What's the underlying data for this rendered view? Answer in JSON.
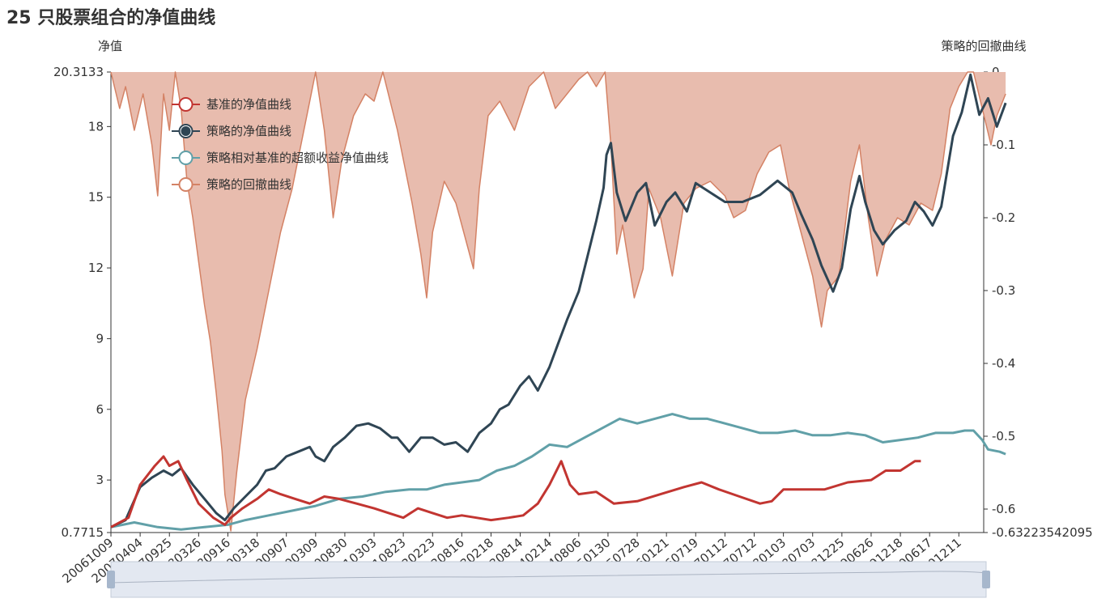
{
  "chart_data": {
    "type": "line",
    "title": "25 只股票组合的净值曲线",
    "ylabel_left": "净值",
    "ylabel_right": "策略的回撤曲线",
    "left_axis": {
      "min": 0.7715,
      "max": 20.3133,
      "ticks": [
        3,
        6,
        9,
        12,
        15,
        18
      ],
      "min_label": "0.7715",
      "max_label": "20.3133"
    },
    "right_axis": {
      "min": -0.632235420955,
      "max": 0,
      "ticks": [
        0,
        -0.1,
        -0.2,
        -0.3,
        -0.4,
        -0.5,
        -0.6
      ],
      "tick_labels": [
        "0",
        "-0.1",
        "-0.2",
        "-0.3",
        "-0.4",
        "-0.5",
        "-0.6"
      ],
      "min_label": "-0.632235420955"
    },
    "x_ticks": [
      "20061009",
      "20070404",
      "20070925",
      "20080326",
      "20080916",
      "20090318",
      "20090907",
      "20100309",
      "20100830",
      "20110303",
      "20110823",
      "20120223",
      "20120816",
      "20130218",
      "20130814",
      "20140214",
      "20140806",
      "20150130",
      "20150728",
      "20160121",
      "20160719",
      "20170112",
      "20170712",
      "20180103",
      "20180703",
      "20181225",
      "20190626",
      "20191218",
      "20200617",
      "20201211"
    ],
    "series": [
      {
        "name": "基准的净值曲线",
        "color": "#c23531",
        "axis": "left",
        "points": [
          [
            0,
            1.0
          ],
          [
            0.6,
            1.4
          ],
          [
            1.0,
            2.8
          ],
          [
            1.5,
            3.6
          ],
          [
            1.8,
            4.0
          ],
          [
            2.0,
            3.6
          ],
          [
            2.3,
            3.8
          ],
          [
            2.6,
            3.0
          ],
          [
            3.0,
            2.0
          ],
          [
            3.5,
            1.4
          ],
          [
            3.9,
            1.1
          ],
          [
            4.1,
            1.4
          ],
          [
            4.5,
            1.8
          ],
          [
            5.0,
            2.2
          ],
          [
            5.4,
            2.6
          ],
          [
            5.8,
            2.4
          ],
          [
            6.3,
            2.2
          ],
          [
            6.8,
            2.0
          ],
          [
            7.3,
            2.3
          ],
          [
            7.8,
            2.2
          ],
          [
            8.4,
            2.0
          ],
          [
            9.0,
            1.8
          ],
          [
            9.5,
            1.6
          ],
          [
            10.0,
            1.4
          ],
          [
            10.5,
            1.8
          ],
          [
            11.0,
            1.6
          ],
          [
            11.5,
            1.4
          ],
          [
            12.0,
            1.5
          ],
          [
            12.5,
            1.4
          ],
          [
            13.0,
            1.3
          ],
          [
            13.6,
            1.4
          ],
          [
            14.1,
            1.5
          ],
          [
            14.6,
            2.0
          ],
          [
            15.0,
            2.8
          ],
          [
            15.4,
            3.8
          ],
          [
            15.7,
            2.8
          ],
          [
            16.0,
            2.4
          ],
          [
            16.6,
            2.5
          ],
          [
            17.2,
            2.0
          ],
          [
            18.0,
            2.1
          ],
          [
            18.8,
            2.4
          ],
          [
            19.6,
            2.7
          ],
          [
            20.2,
            2.9
          ],
          [
            20.8,
            2.6
          ],
          [
            21.5,
            2.3
          ],
          [
            22.2,
            2.0
          ],
          [
            22.6,
            2.1
          ],
          [
            23.0,
            2.6
          ],
          [
            23.6,
            2.6
          ],
          [
            24.4,
            2.6
          ],
          [
            25.2,
            2.9
          ],
          [
            26.0,
            3.0
          ],
          [
            26.5,
            3.4
          ],
          [
            27.0,
            3.4
          ],
          [
            27.5,
            3.8
          ],
          [
            27.7,
            3.8
          ]
        ]
      },
      {
        "name": "策略的净值曲线",
        "color": "#2f4554",
        "axis": "left",
        "points": [
          [
            0,
            1.0
          ],
          [
            0.5,
            1.3
          ],
          [
            1.0,
            2.7
          ],
          [
            1.4,
            3.1
          ],
          [
            1.8,
            3.4
          ],
          [
            2.1,
            3.2
          ],
          [
            2.4,
            3.5
          ],
          [
            2.8,
            2.8
          ],
          [
            3.2,
            2.2
          ],
          [
            3.6,
            1.6
          ],
          [
            3.9,
            1.3
          ],
          [
            4.2,
            1.8
          ],
          [
            4.6,
            2.3
          ],
          [
            5.0,
            2.8
          ],
          [
            5.3,
            3.4
          ],
          [
            5.6,
            3.5
          ],
          [
            6.0,
            4.0
          ],
          [
            6.4,
            4.2
          ],
          [
            6.8,
            4.4
          ],
          [
            7.0,
            4.0
          ],
          [
            7.3,
            3.8
          ],
          [
            7.6,
            4.4
          ],
          [
            8.0,
            4.8
          ],
          [
            8.4,
            5.3
          ],
          [
            8.8,
            5.4
          ],
          [
            9.2,
            5.2
          ],
          [
            9.6,
            4.8
          ],
          [
            9.8,
            4.8
          ],
          [
            10.2,
            4.2
          ],
          [
            10.6,
            4.8
          ],
          [
            11.0,
            4.8
          ],
          [
            11.4,
            4.5
          ],
          [
            11.8,
            4.6
          ],
          [
            12.2,
            4.2
          ],
          [
            12.6,
            5.0
          ],
          [
            13.0,
            5.4
          ],
          [
            13.3,
            6.0
          ],
          [
            13.6,
            6.2
          ],
          [
            14.0,
            7.0
          ],
          [
            14.3,
            7.4
          ],
          [
            14.6,
            6.8
          ],
          [
            15.0,
            7.8
          ],
          [
            15.3,
            8.8
          ],
          [
            15.6,
            9.8
          ],
          [
            16.0,
            11.0
          ],
          [
            16.3,
            12.5
          ],
          [
            16.6,
            14.0
          ],
          [
            16.85,
            15.4
          ],
          [
            16.95,
            16.8
          ],
          [
            17.1,
            17.3
          ],
          [
            17.3,
            15.2
          ],
          [
            17.6,
            14.0
          ],
          [
            18.0,
            15.2
          ],
          [
            18.3,
            15.6
          ],
          [
            18.6,
            13.8
          ],
          [
            19.0,
            14.8
          ],
          [
            19.3,
            15.2
          ],
          [
            19.7,
            14.4
          ],
          [
            20.0,
            15.6
          ],
          [
            20.5,
            15.2
          ],
          [
            21.0,
            14.8
          ],
          [
            21.6,
            14.8
          ],
          [
            22.2,
            15.1
          ],
          [
            22.8,
            15.7
          ],
          [
            23.3,
            15.2
          ],
          [
            23.6,
            14.3
          ],
          [
            24.0,
            13.2
          ],
          [
            24.3,
            12.1
          ],
          [
            24.7,
            11.0
          ],
          [
            25.0,
            12.0
          ],
          [
            25.3,
            14.5
          ],
          [
            25.6,
            15.9
          ],
          [
            25.8,
            14.8
          ],
          [
            26.1,
            13.6
          ],
          [
            26.4,
            13.0
          ],
          [
            26.8,
            13.6
          ],
          [
            27.2,
            14.0
          ],
          [
            27.5,
            14.8
          ],
          [
            27.8,
            14.4
          ],
          [
            28.1,
            13.8
          ],
          [
            28.4,
            14.6
          ],
          [
            28.8,
            17.6
          ],
          [
            29.1,
            18.6
          ],
          [
            29.4,
            20.2
          ],
          [
            29.7,
            18.5
          ],
          [
            30.0,
            19.2
          ],
          [
            30.3,
            18.0
          ],
          [
            30.6,
            19.0
          ]
        ]
      },
      {
        "name": "策略相对基准的超额收益净值曲线",
        "color": "#61a0a8",
        "axis": "left",
        "points": [
          [
            0,
            1.0
          ],
          [
            0.8,
            1.2
          ],
          [
            1.6,
            1.0
          ],
          [
            2.4,
            0.9
          ],
          [
            3.2,
            1.0
          ],
          [
            4.0,
            1.1
          ],
          [
            4.6,
            1.3
          ],
          [
            5.4,
            1.5
          ],
          [
            6.2,
            1.7
          ],
          [
            7.0,
            1.9
          ],
          [
            7.8,
            2.2
          ],
          [
            8.6,
            2.3
          ],
          [
            9.4,
            2.5
          ],
          [
            10.2,
            2.6
          ],
          [
            10.8,
            2.6
          ],
          [
            11.4,
            2.8
          ],
          [
            12.0,
            2.9
          ],
          [
            12.6,
            3.0
          ],
          [
            13.2,
            3.4
          ],
          [
            13.8,
            3.6
          ],
          [
            14.4,
            4.0
          ],
          [
            15.0,
            4.5
          ],
          [
            15.6,
            4.4
          ],
          [
            16.2,
            4.8
          ],
          [
            16.8,
            5.2
          ],
          [
            17.4,
            5.6
          ],
          [
            18.0,
            5.4
          ],
          [
            18.6,
            5.6
          ],
          [
            19.2,
            5.8
          ],
          [
            19.8,
            5.6
          ],
          [
            20.4,
            5.6
          ],
          [
            21.0,
            5.4
          ],
          [
            21.6,
            5.2
          ],
          [
            22.2,
            5.0
          ],
          [
            22.8,
            5.0
          ],
          [
            23.4,
            5.1
          ],
          [
            24.0,
            4.9
          ],
          [
            24.6,
            4.9
          ],
          [
            25.2,
            5.0
          ],
          [
            25.8,
            4.9
          ],
          [
            26.4,
            4.6
          ],
          [
            27.0,
            4.7
          ],
          [
            27.6,
            4.8
          ],
          [
            28.2,
            5.0
          ],
          [
            28.8,
            5.0
          ],
          [
            29.2,
            5.1
          ],
          [
            29.5,
            5.1
          ],
          [
            29.8,
            4.7
          ],
          [
            30.0,
            4.3
          ],
          [
            30.4,
            4.2
          ],
          [
            30.6,
            4.1
          ]
        ]
      },
      {
        "name": "策略的回撤曲线",
        "color": "#d48265",
        "fill": "#e8bcae",
        "axis": "right",
        "points": [
          [
            0,
            0
          ],
          [
            0.3,
            -0.05
          ],
          [
            0.5,
            -0.02
          ],
          [
            0.8,
            -0.08
          ],
          [
            1.1,
            -0.03
          ],
          [
            1.4,
            -0.1
          ],
          [
            1.6,
            -0.17
          ],
          [
            1.8,
            -0.03
          ],
          [
            2.0,
            -0.08
          ],
          [
            2.2,
            0
          ],
          [
            2.4,
            -0.05
          ],
          [
            2.6,
            -0.15
          ],
          [
            2.8,
            -0.2
          ],
          [
            3.0,
            -0.26
          ],
          [
            3.2,
            -0.32
          ],
          [
            3.4,
            -0.37
          ],
          [
            3.6,
            -0.44
          ],
          [
            3.8,
            -0.52
          ],
          [
            3.9,
            -0.58
          ],
          [
            4.1,
            -0.63
          ],
          [
            4.3,
            -0.55
          ],
          [
            4.6,
            -0.45
          ],
          [
            5.0,
            -0.38
          ],
          [
            5.4,
            -0.3
          ],
          [
            5.8,
            -0.22
          ],
          [
            6.2,
            -0.16
          ],
          [
            6.5,
            -0.1
          ],
          [
            6.8,
            -0.04
          ],
          [
            7.0,
            0
          ],
          [
            7.3,
            -0.08
          ],
          [
            7.6,
            -0.2
          ],
          [
            7.9,
            -0.12
          ],
          [
            8.3,
            -0.06
          ],
          [
            8.7,
            -0.03
          ],
          [
            9.0,
            -0.04
          ],
          [
            9.3,
            0
          ],
          [
            9.8,
            -0.08
          ],
          [
            10.3,
            -0.18
          ],
          [
            10.6,
            -0.25
          ],
          [
            10.8,
            -0.31
          ],
          [
            11.0,
            -0.22
          ],
          [
            11.4,
            -0.15
          ],
          [
            11.8,
            -0.18
          ],
          [
            12.2,
            -0.24
          ],
          [
            12.4,
            -0.27
          ],
          [
            12.6,
            -0.16
          ],
          [
            12.9,
            -0.06
          ],
          [
            13.3,
            -0.04
          ],
          [
            13.8,
            -0.08
          ],
          [
            14.3,
            -0.02
          ],
          [
            14.8,
            0
          ],
          [
            15.2,
            -0.05
          ],
          [
            15.6,
            -0.03
          ],
          [
            16.0,
            -0.01
          ],
          [
            16.3,
            0
          ],
          [
            16.6,
            -0.02
          ],
          [
            16.9,
            0
          ],
          [
            17.1,
            -0.1
          ],
          [
            17.3,
            -0.25
          ],
          [
            17.5,
            -0.21
          ],
          [
            17.9,
            -0.31
          ],
          [
            18.2,
            -0.27
          ],
          [
            18.4,
            -0.16
          ],
          [
            18.8,
            -0.2
          ],
          [
            19.2,
            -0.28
          ],
          [
            19.6,
            -0.18
          ],
          [
            20.0,
            -0.16
          ],
          [
            20.5,
            -0.15
          ],
          [
            21.0,
            -0.17
          ],
          [
            21.3,
            -0.2
          ],
          [
            21.7,
            -0.19
          ],
          [
            22.1,
            -0.14
          ],
          [
            22.5,
            -0.11
          ],
          [
            22.9,
            -0.1
          ],
          [
            23.2,
            -0.16
          ],
          [
            23.6,
            -0.22
          ],
          [
            24.0,
            -0.28
          ],
          [
            24.3,
            -0.35
          ],
          [
            24.5,
            -0.3
          ],
          [
            24.9,
            -0.28
          ],
          [
            25.3,
            -0.15
          ],
          [
            25.6,
            -0.1
          ],
          [
            25.9,
            -0.2
          ],
          [
            26.2,
            -0.28
          ],
          [
            26.5,
            -0.23
          ],
          [
            26.9,
            -0.2
          ],
          [
            27.3,
            -0.21
          ],
          [
            27.7,
            -0.18
          ],
          [
            28.1,
            -0.19
          ],
          [
            28.4,
            -0.14
          ],
          [
            28.7,
            -0.05
          ],
          [
            29.0,
            -0.02
          ],
          [
            29.3,
            0
          ],
          [
            29.5,
            0
          ],
          [
            29.8,
            -0.05
          ],
          [
            30.1,
            -0.1
          ],
          [
            30.3,
            -0.06
          ],
          [
            30.6,
            -0.03
          ]
        ]
      }
    ]
  }
}
